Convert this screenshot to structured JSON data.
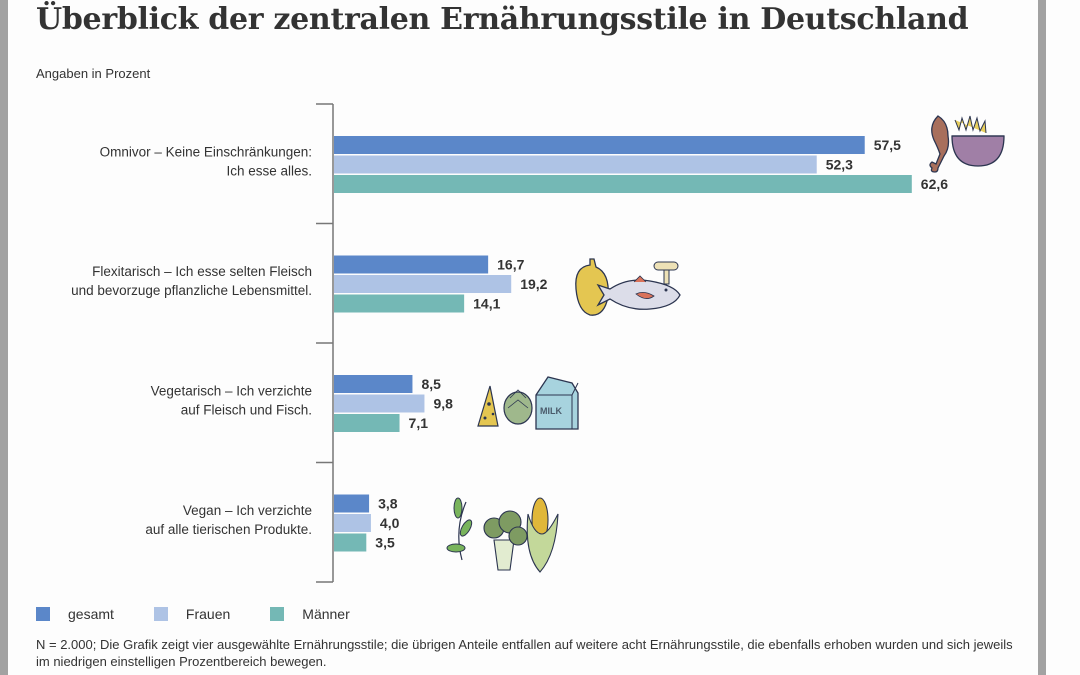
{
  "title": "Überblick der zentralen Ernährungsstile in Deutschland",
  "subtitle": "Angaben in Prozent",
  "colors": {
    "gesamt": "#5b87c9",
    "frauen": "#aec3e5",
    "maenner": "#74b8b5",
    "axis": "#777777"
  },
  "legend": [
    {
      "label": "gesamt",
      "color": "#5b87c9"
    },
    {
      "label": "Frauen",
      "color": "#aec3e5"
    },
    {
      "label": "Männer",
      "color": "#74b8b5"
    }
  ],
  "note": "N = 2.000; Die Grafik zeigt vier ausgewählte Ernährungsstile; die übrigen Anteile entfallen auf weitere acht Ernährungsstile, die ebenfalls erhoben wurden und sich jeweils im niedrigen einstelligen Prozentbereich bewegen.",
  "chart_data": {
    "type": "bar",
    "orientation": "horizontal",
    "title": "Überblick der zentralen Ernährungsstile in Deutschland",
    "subtitle": "Angaben in Prozent",
    "xlabel": "",
    "ylabel": "",
    "xlim": [
      0,
      70
    ],
    "grid": false,
    "legend_position": "bottom-left",
    "categories": [
      [
        "Omnivor – Keine Einschränkungen:",
        "Ich esse alles."
      ],
      [
        "Flexitarisch – Ich esse selten Fleisch",
        "und bevorzuge pflanzliche Lebensmittel."
      ],
      [
        "Vegetarisch – Ich verzichte",
        "auf Fleisch und Fisch."
      ],
      [
        "Vegan – Ich verzichte",
        "auf alle tierischen Produkte."
      ]
    ],
    "category_icons": [
      "chicken-leg-fries-bowl-icon",
      "pepper-fish-mushroom-icon",
      "cheese-artichoke-milk-icon",
      "leaves-broccoli-corn-icon"
    ],
    "series": [
      {
        "name": "gesamt",
        "values": [
          57.5,
          16.7,
          8.5,
          3.8
        ],
        "labels": [
          "57,5",
          "16,7",
          "8,5",
          "3,8"
        ]
      },
      {
        "name": "Frauen",
        "values": [
          52.3,
          19.2,
          9.8,
          4.0
        ],
        "labels": [
          "52,3",
          "19,2",
          "9,8",
          "4,0"
        ]
      },
      {
        "name": "Männer",
        "values": [
          62.6,
          14.1,
          7.1,
          3.5
        ],
        "labels": [
          "62,6",
          "14,1",
          "7,1",
          "3,5"
        ]
      }
    ]
  }
}
